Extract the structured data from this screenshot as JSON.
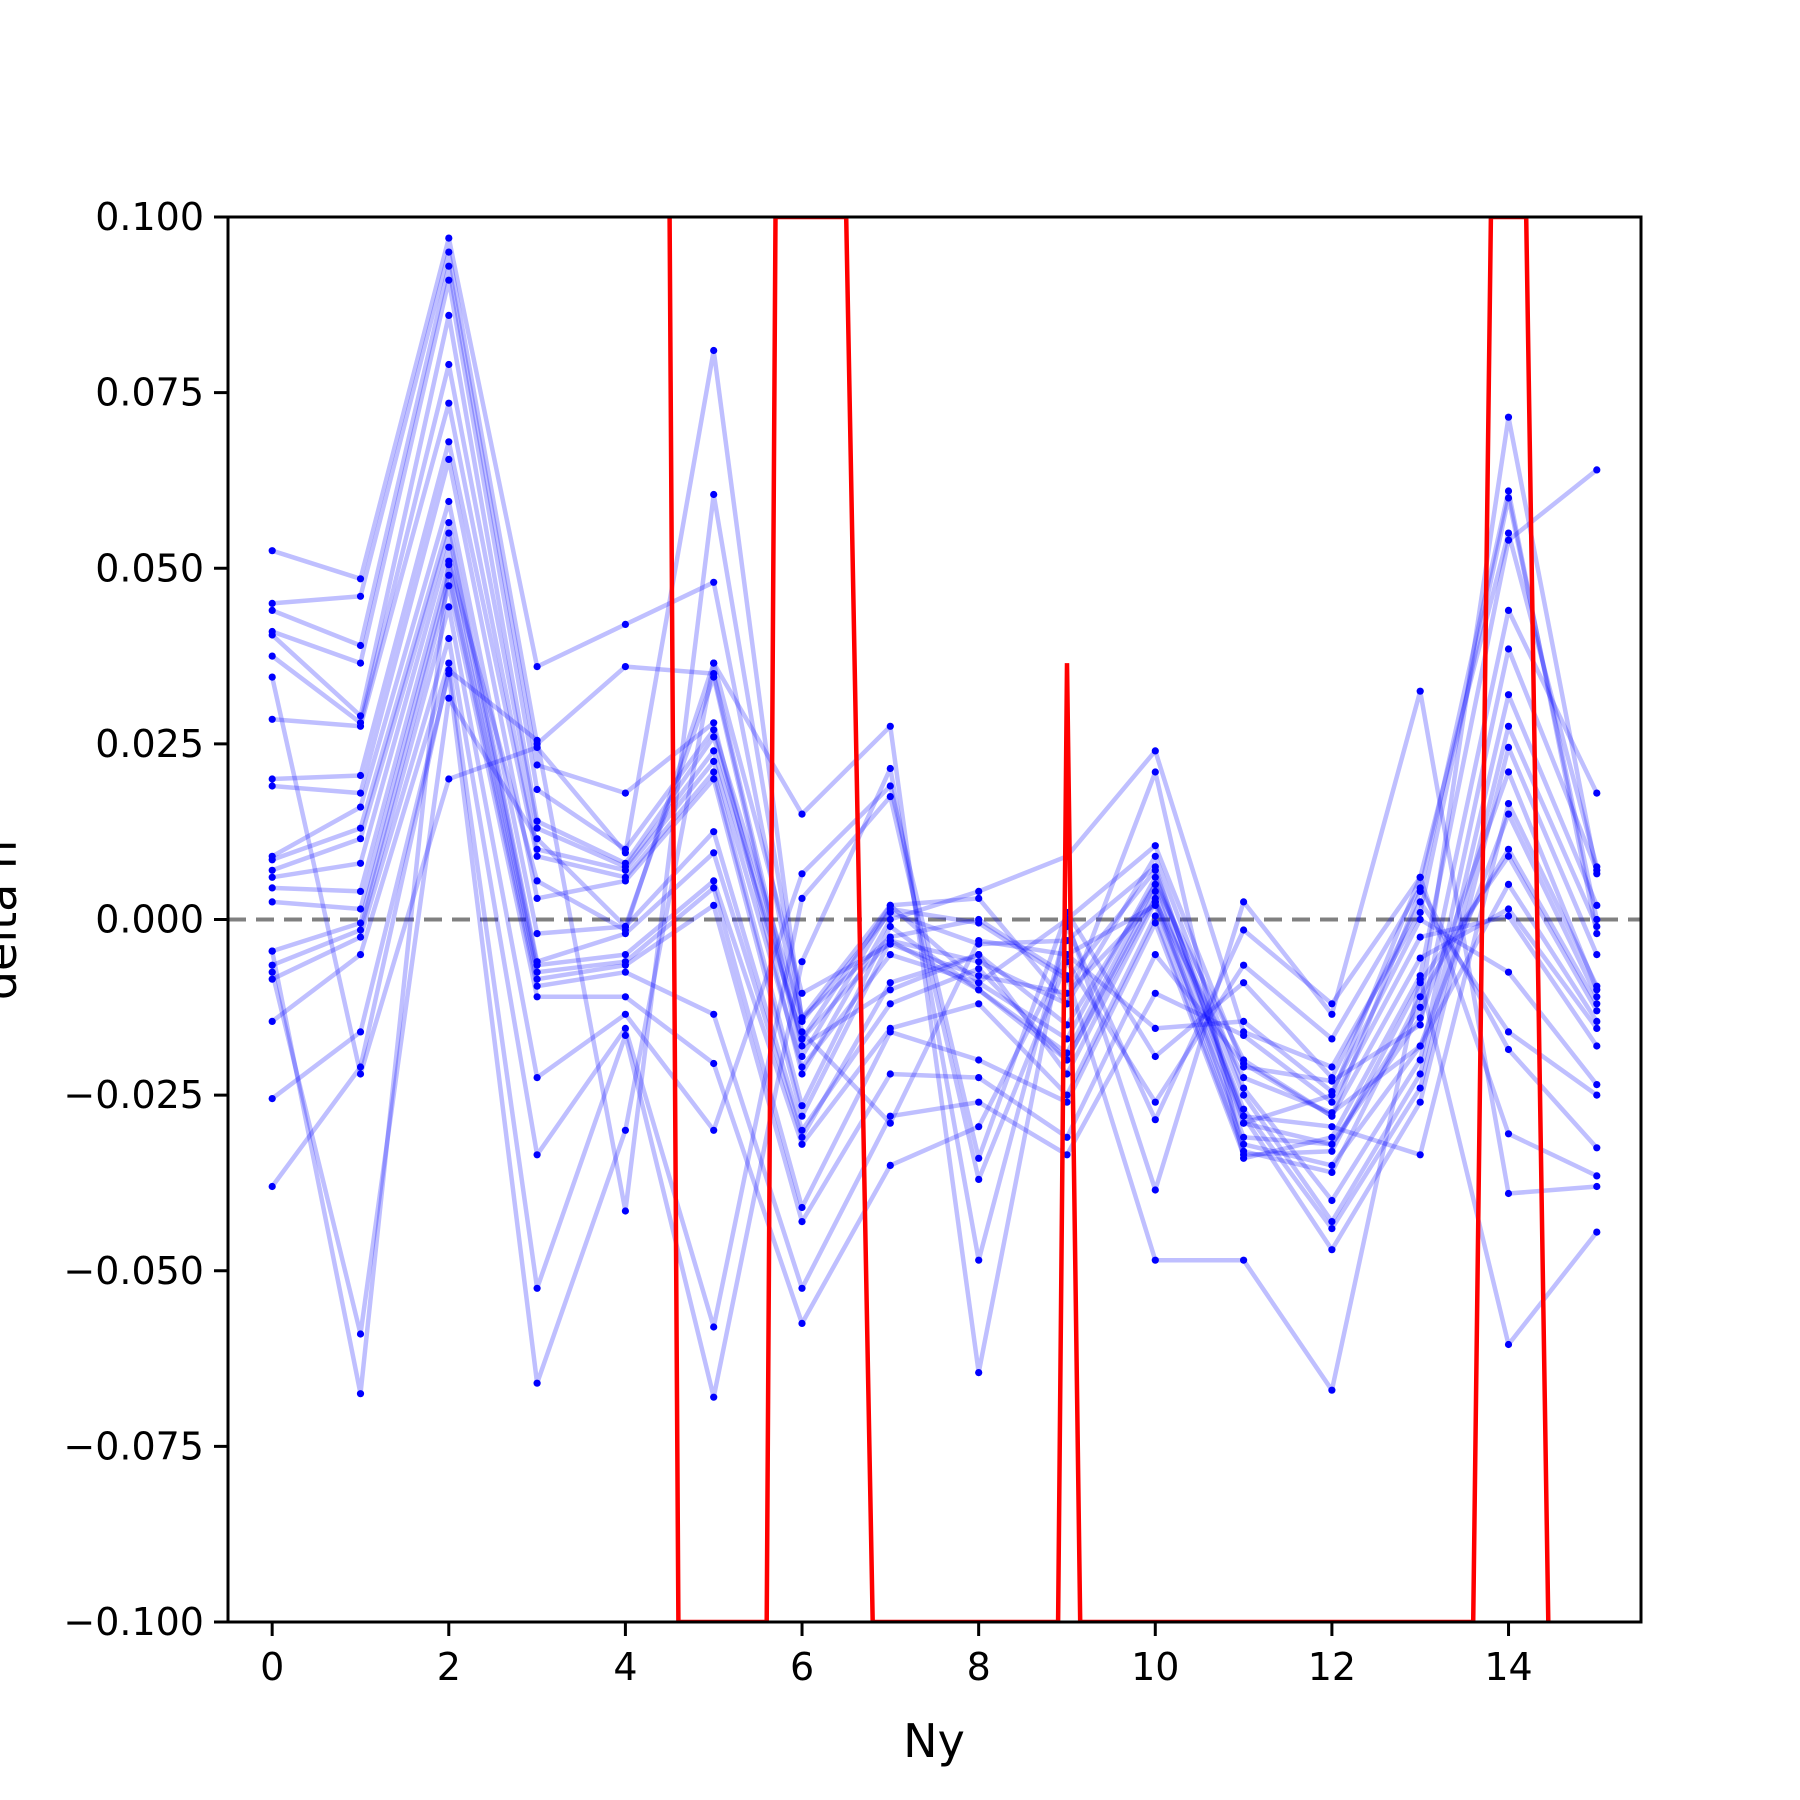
{
  "chart_data": {
    "type": "line",
    "title": "",
    "xlabel": "Ny",
    "ylabel": "delta h",
    "xlim": [
      -0.5,
      15.5
    ],
    "ylim": [
      -0.1,
      0.1
    ],
    "xticks": [
      0,
      2,
      4,
      6,
      8,
      10,
      12,
      14
    ],
    "xtick_labels": [
      "0",
      "2",
      "4",
      "6",
      "8",
      "10",
      "12",
      "14"
    ],
    "yticks": [
      0.1,
      0.075,
      0.05,
      0.025,
      0.0,
      -0.025,
      -0.05,
      -0.075,
      -0.1
    ],
    "ytick_labels": [
      "0.100",
      "0.075",
      "0.050",
      "0.025",
      "0.000",
      "−0.025",
      "−0.050",
      "−0.075",
      "−0.100"
    ],
    "grid": false,
    "legend": "none",
    "x": [
      0,
      1,
      2,
      3,
      4,
      5,
      6,
      7,
      8,
      9,
      10,
      11,
      12,
      13,
      14,
      15
    ],
    "reference_line": {
      "y": 0.0,
      "style": "dashed",
      "color": "#808080"
    },
    "colors": {
      "series": "#0000ff",
      "mean": "#ff0000",
      "axis": "#000000"
    },
    "series": [
      {
        "values": [
          0.0525,
          0.0485,
          0.097,
          0.036,
          0.042,
          0.048,
          -0.016,
          -0.029,
          -0.003,
          -0.005,
          0.002,
          -0.029,
          -0.025,
          0.006,
          0.055,
          0.0075
        ]
      },
      {
        "values": [
          0.045,
          0.046,
          0.095,
          0.025,
          0.036,
          0.035,
          -0.018,
          -0.01,
          -0.005,
          -0.015,
          0.005,
          -0.02,
          -0.028,
          0.004,
          0.061,
          -0.002
        ]
      },
      {
        "values": [
          0.044,
          0.039,
          0.093,
          0.022,
          0.018,
          0.028,
          -0.022,
          0.0,
          0.004,
          0.009,
          0.024,
          -0.016,
          -0.021,
          0.001,
          0.06,
          0.0
        ]
      },
      {
        "values": [
          0.041,
          0.0365,
          0.091,
          0.0185,
          0.01,
          0.027,
          -0.014,
          0.002,
          0.003,
          -0.012,
          0.021,
          -0.034,
          -0.031,
          -0.008,
          0.054,
          0.064
        ]
      },
      {
        "values": [
          0.0405,
          0.029,
          0.086,
          0.014,
          0.008,
          0.026,
          -0.017,
          0.002,
          -0.009,
          0.0,
          0.0105,
          -0.021,
          -0.023,
          -0.015,
          0.044,
          0.018
        ]
      },
      {
        "values": [
          0.0375,
          0.028,
          0.079,
          0.013,
          0.0075,
          0.024,
          -0.017,
          -0.003,
          -0.006,
          -0.012,
          0.009,
          -0.024,
          -0.04,
          -0.02,
          0.0385,
          0.007
        ]
      },
      {
        "values": [
          0.0285,
          0.0275,
          0.0735,
          0.01,
          0.007,
          0.0225,
          -0.021,
          -0.005,
          -0.009,
          -0.017,
          0.006,
          -0.025,
          -0.043,
          -0.022,
          0.032,
          0.002
        ]
      },
      {
        "values": [
          0.02,
          0.0205,
          0.068,
          0.009,
          0.006,
          0.021,
          -0.0265,
          -0.001,
          -0.01,
          -0.019,
          0.005,
          -0.027,
          -0.044,
          -0.024,
          0.0275,
          -0.001
        ]
      },
      {
        "values": [
          0.019,
          0.018,
          0.0655,
          0.003,
          0.0055,
          0.02,
          -0.028,
          -0.003,
          -0.01,
          -0.02,
          0.004,
          -0.028,
          -0.047,
          -0.026,
          0.0245,
          -0.005
        ]
      },
      {
        "values": [
          0.009,
          0.016,
          0.0595,
          -0.002,
          -0.001,
          0.0125,
          -0.03,
          -0.012,
          -0.007,
          -0.02,
          0.003,
          -0.031,
          -0.032,
          -0.014,
          0.021,
          -0.01
        ]
      },
      {
        "values": [
          0.0085,
          0.013,
          0.0565,
          -0.006,
          -0.002,
          0.0095,
          -0.031,
          -0.009,
          -0.005,
          -0.022,
          0.0025,
          -0.032,
          -0.035,
          -0.018,
          0.015,
          -0.011
        ]
      },
      {
        "values": [
          0.007,
          0.0115,
          0.055,
          -0.0065,
          -0.005,
          0.0055,
          -0.032,
          -0.0155,
          -0.012,
          -0.025,
          0.0005,
          -0.033,
          -0.036,
          -0.011,
          0.01,
          -0.012
        ]
      },
      {
        "values": [
          0.006,
          0.008,
          0.053,
          -0.0075,
          -0.006,
          0.0045,
          -0.041,
          -0.016,
          -0.02,
          -0.026,
          -0.0005,
          -0.0335,
          -0.033,
          -0.009,
          0.009,
          -0.013
        ]
      },
      {
        "values": [
          0.0045,
          0.004,
          0.0505,
          -0.0085,
          -0.0065,
          0.002,
          -0.043,
          -0.022,
          -0.0225,
          -0.031,
          -0.005,
          -0.0205,
          -0.028,
          -0.0055,
          0.0015,
          -0.0155
        ]
      },
      {
        "values": [
          0.0025,
          0.0015,
          0.049,
          -0.0095,
          -0.0075,
          -0.0135,
          -0.0525,
          -0.028,
          -0.026,
          -0.0335,
          -0.0105,
          -0.0165,
          -0.026,
          -0.0025,
          0.0005,
          -0.018
        ]
      },
      {
        "values": [
          -0.0045,
          -0.0005,
          0.0475,
          -0.011,
          -0.011,
          -0.0205,
          -0.0575,
          -0.035,
          -0.0295,
          -0.005,
          -0.0155,
          -0.0145,
          -0.0245,
          0.0,
          -0.0075,
          -0.0235
        ]
      },
      {
        "values": [
          -0.0065,
          -0.0015,
          0.0445,
          -0.0225,
          -0.0135,
          -0.03,
          0.0065,
          0.019,
          -0.034,
          0.001,
          -0.0195,
          -0.009,
          -0.0225,
          0.0025,
          -0.016,
          -0.025
        ]
      },
      {
        "values": [
          -0.0085,
          -0.0025,
          0.04,
          -0.0335,
          -0.0155,
          -0.058,
          0.003,
          0.0175,
          -0.037,
          -0.006,
          -0.026,
          -0.0065,
          -0.017,
          0.0045,
          -0.0185,
          -0.0325
        ]
      },
      {
        "values": [
          -0.0145,
          -0.005,
          0.0365,
          -0.0525,
          -0.0165,
          -0.068,
          -0.006,
          0.0215,
          -0.0485,
          -0.001,
          -0.0285,
          -0.0015,
          -0.012,
          0.006,
          -0.0305,
          -0.0365
        ]
      },
      {
        "values": [
          -0.0255,
          -0.016,
          0.035,
          -0.066,
          -0.03,
          0.0365,
          0.015,
          0.0275,
          -0.0645,
          0.0,
          -0.0385,
          0.0025,
          -0.0135,
          0.0325,
          -0.039,
          -0.038
        ]
      },
      {
        "values": [
          -0.038,
          -0.021,
          0.0355,
          0.0255,
          -0.0415,
          0.0605,
          -0.014,
          -0.0025,
          0.0,
          -0.008,
          -0.0485,
          -0.0485,
          -0.067,
          -0.0085,
          -0.0605,
          -0.0445
        ]
      },
      {
        "values": [
          0.0345,
          -0.022,
          0.02,
          0.0245,
          0.0095,
          0.081,
          -0.0145,
          0.001,
          -0.0035,
          -0.003,
          0.0075,
          -0.029,
          -0.032,
          -0.0125,
          0.0715,
          0.0065
        ]
      },
      {
        "values": [
          -0.0075,
          -0.059,
          0.0315,
          0.0115,
          -0.001,
          0.0345,
          -0.0195,
          0.0015,
          -0.0005,
          -0.0085,
          0.007,
          -0.028,
          -0.0295,
          -0.0335,
          0.0165,
          -0.0095
        ]
      },
      {
        "values": [
          -0.0045,
          -0.0675,
          0.051,
          0.0055,
          -0.0015,
          0.0365,
          -0.0105,
          -0.0035,
          -0.008,
          -0.0105,
          0.0025,
          -0.0225,
          -0.0275,
          -0.018,
          0.005,
          -0.0145
        ]
      }
    ],
    "mean_line": {
      "x": [
        4.5,
        4.6,
        5.6,
        5.7,
        6.5,
        6.8,
        8.9,
        9.0,
        9.15,
        13.6,
        13.8,
        14.2,
        14.45
      ],
      "values": [
        0.1,
        -0.1,
        -0.1,
        0.1,
        0.1,
        -0.1,
        -0.1,
        0.0365,
        -0.1,
        -0.1,
        0.1,
        0.1,
        -0.1
      ]
    }
  }
}
